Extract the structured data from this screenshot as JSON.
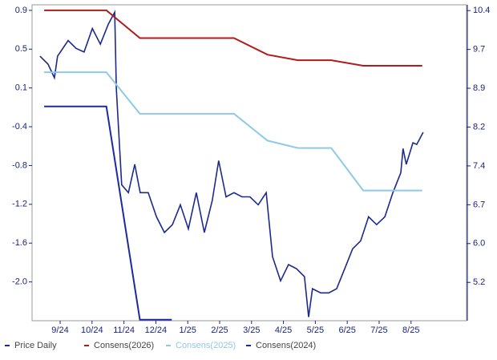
{
  "chart_data": {
    "type": "line",
    "xlim": [
      -0.88,
      12.74
    ],
    "xticks": [
      {
        "value": 0,
        "label": "9/24"
      },
      {
        "value": 1,
        "label": "10/24"
      },
      {
        "value": 2,
        "label": "11/24"
      },
      {
        "value": 3,
        "label": "12/24"
      },
      {
        "value": 4,
        "label": "1/25"
      },
      {
        "value": 5,
        "label": "2/25"
      },
      {
        "value": 6,
        "label": "3/25"
      },
      {
        "value": 7,
        "label": "4/25"
      },
      {
        "value": 8,
        "label": "5/25"
      },
      {
        "value": 9,
        "label": "6/25"
      },
      {
        "value": 10,
        "label": "7/25"
      },
      {
        "value": 11,
        "label": "8/25"
      }
    ],
    "ylim": [
      -2.46,
      0.96
    ],
    "yticks": [
      0.9,
      {
        "value": 0.48,
        "label": "0.5"
      },
      {
        "value": 0.06,
        "label": "0.1"
      },
      {
        "value": -0.36,
        "label": "-0.4"
      },
      {
        "value": -0.78,
        "label": "-0.8"
      },
      -1.2,
      {
        "value": -1.62,
        "label": "-1.6"
      },
      {
        "value": -2.04,
        "label": "-2.0"
      }
    ],
    "y2lim": [
      4.49,
      10.51
    ],
    "y2ticks": [
      10.4,
      {
        "value": 9.66,
        "label": "9.7"
      },
      {
        "value": 8.92,
        "label": "8.9"
      },
      {
        "value": 8.18,
        "label": "8.2"
      },
      {
        "value": 7.44,
        "label": "7.4"
      },
      {
        "value": 6.7,
        "label": "6.7"
      },
      {
        "value": 5.96,
        "label": "6.0"
      },
      {
        "value": 5.22,
        "label": "5.2"
      }
    ],
    "series": [
      {
        "name": "Price Daily",
        "color": "#1c2a8c",
        "axis": "y2",
        "x": [
          -0.63,
          -0.38,
          -0.18,
          -0.08,
          0.25,
          0.5,
          0.75,
          1.01,
          1.26,
          1.51,
          1.71,
          1.76,
          1.93,
          2.14,
          2.34,
          2.51,
          2.76,
          3.02,
          3.27,
          3.52,
          3.77,
          4.02,
          4.27,
          4.52,
          4.77,
          4.97,
          5.2,
          5.45,
          5.7,
          5.95,
          6.21,
          6.46,
          6.66,
          6.91,
          7.16,
          7.41,
          7.66,
          7.79,
          7.91,
          8.17,
          8.42,
          8.67,
          8.92,
          9.17,
          9.42,
          9.67,
          9.92,
          10.18,
          10.43,
          10.68,
          10.75,
          10.85,
          11.06,
          11.18,
          11.38
        ],
        "values": [
          9.53,
          9.38,
          9.12,
          9.53,
          9.83,
          9.68,
          9.61,
          10.06,
          9.76,
          10.14,
          10.37,
          8.92,
          7.08,
          6.93,
          7.47,
          6.93,
          6.93,
          6.47,
          6.17,
          6.32,
          6.7,
          6.24,
          6.93,
          6.17,
          6.78,
          7.54,
          6.85,
          6.93,
          6.85,
          6.85,
          6.7,
          6.93,
          5.71,
          5.25,
          5.56,
          5.48,
          5.33,
          4.56,
          5.1,
          5.02,
          5.02,
          5.1,
          5.48,
          5.86,
          6.01,
          6.47,
          6.32,
          6.47,
          6.93,
          7.31,
          7.77,
          7.47,
          7.88,
          7.85,
          8.08
        ]
      },
      {
        "name": "Consens(2026)",
        "color": "#b01c1c",
        "x": [
          -0.5,
          1.45,
          2.5,
          5.45,
          6.5,
          7.45,
          8.5,
          9.5,
          11.35
        ],
        "values": [
          0.9,
          0.9,
          0.6,
          0.6,
          0.42,
          0.36,
          0.36,
          0.3,
          0.3
        ]
      },
      {
        "name": "Consens(2025)",
        "color": "#8ecae6",
        "x": [
          -0.5,
          1.45,
          2.5,
          5.45,
          6.5,
          7.45,
          8.5,
          9.5,
          11.35
        ],
        "values": [
          0.23,
          0.23,
          -0.22,
          -0.22,
          -0.51,
          -0.59,
          -0.59,
          -1.05,
          -1.05
        ]
      },
      {
        "name": "Consens(2024)",
        "color": "#1c2aa0",
        "x": [
          -0.5,
          1.45,
          2.5,
          3.5
        ],
        "values": [
          -0.14,
          -0.14,
          -2.45,
          -2.45
        ]
      }
    ]
  }
}
